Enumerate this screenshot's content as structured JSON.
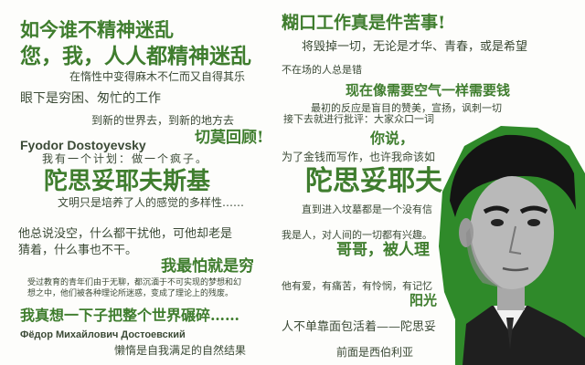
{
  "quotes": [
    "如今谁不精神迷乱",
    "您，我，人人都精神迷乱",
    "在惰性中变得麻木不仁而又自得其乐",
    "眼下是穷困、匆忙的工作",
    "到新的世界去，到新的地方去",
    "切莫回顾!",
    "Fyodor Dostoyevsky",
    "我有一个计划：做一个疯子。",
    "陀思妥耶夫斯基",
    "文明只是培养了人的感觉的多样性……",
    "他总说没空，什么都干扰他，可他却老是",
    "猜着，什么事也不干。",
    "我最怕就是穷",
    "受过教育的青年们由于无聊，都沉湎于不可实现的梦想和幻",
    "想之中，他们被各种理论所迷惑，变成了理论上的残废。",
    "我真想一下子把整个世界碾碎……",
    "Фёдор Михайлович Достоевский",
    "懒惰是自我满足的自然结果",
    "糊口工作真是件苦事!",
    "将毁掉一切，无论是才华、青春，或是希望",
    "不在场的人总是错",
    "现在像需要空气一样需要钱",
    "最初的反应是盲目的赞美，宣扬，讽刺一切",
    "接下去就进行批评：大家众口一词",
    "你说，",
    "为了金钱而写作，也许我命该如",
    "陀思妥耶夫",
    "直到进入坟墓都是一个没有信",
    "我是人，对人间的一切都有兴趣。",
    "哥哥，被人理",
    "他有爱，有痛苦，有怜悯，有记忆",
    "阳光",
    "人不单靠面包活着——陀思妥",
    "前面是西伯利亚"
  ],
  "portrait": {
    "description_icon": "portrait-photo"
  },
  "colors": {
    "green": "#3f7d2e",
    "dark": "#3b4a36"
  }
}
